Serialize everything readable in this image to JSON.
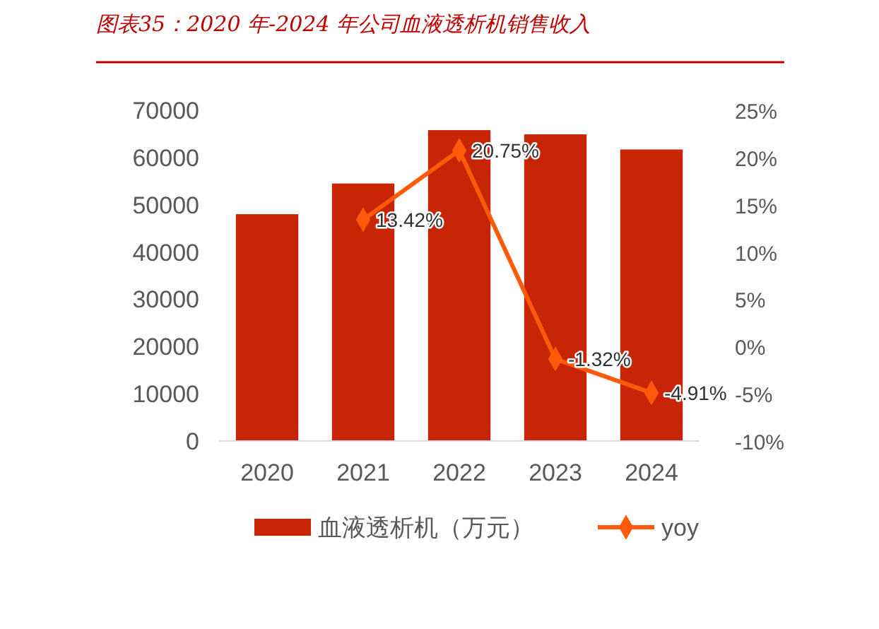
{
  "chart_data": {
    "type": "bar",
    "title": "图表35：2020 年-2024 年公司血液透析机销售收入",
    "categories": [
      "2020",
      "2021",
      "2022",
      "2023",
      "2024"
    ],
    "series": [
      {
        "name": "血液透析机（万元）",
        "type": "bar",
        "color": "#c82506",
        "values": [
          48000,
          54500,
          65800,
          64900,
          61700
        ]
      },
      {
        "name": "yoy",
        "type": "line",
        "axis": "y2",
        "color": "#ff5a0a",
        "marker": "diamond",
        "values": [
          null,
          13.42,
          20.75,
          -1.32,
          -4.91
        ],
        "value_labels": [
          null,
          "13.42%",
          "20.75%",
          "-1.32%",
          "-4.91%"
        ]
      }
    ],
    "ylim": [
      0,
      70000
    ],
    "yticks": [
      0,
      10000,
      20000,
      30000,
      40000,
      50000,
      60000,
      70000
    ],
    "y2lim": [
      -10,
      25
    ],
    "y2ticks": [
      {
        "value": -10,
        "label": "-10%"
      },
      {
        "value": -5,
        "label": "-5%"
      },
      {
        "value": 0,
        "label": "0%"
      },
      {
        "value": 5,
        "label": "5%"
      },
      {
        "value": 10,
        "label": "10%"
      },
      {
        "value": 15,
        "label": "15%"
      },
      {
        "value": 20,
        "label": "20%"
      },
      {
        "value": 25,
        "label": "25%"
      }
    ],
    "grid": false,
    "legend": "bottom"
  }
}
